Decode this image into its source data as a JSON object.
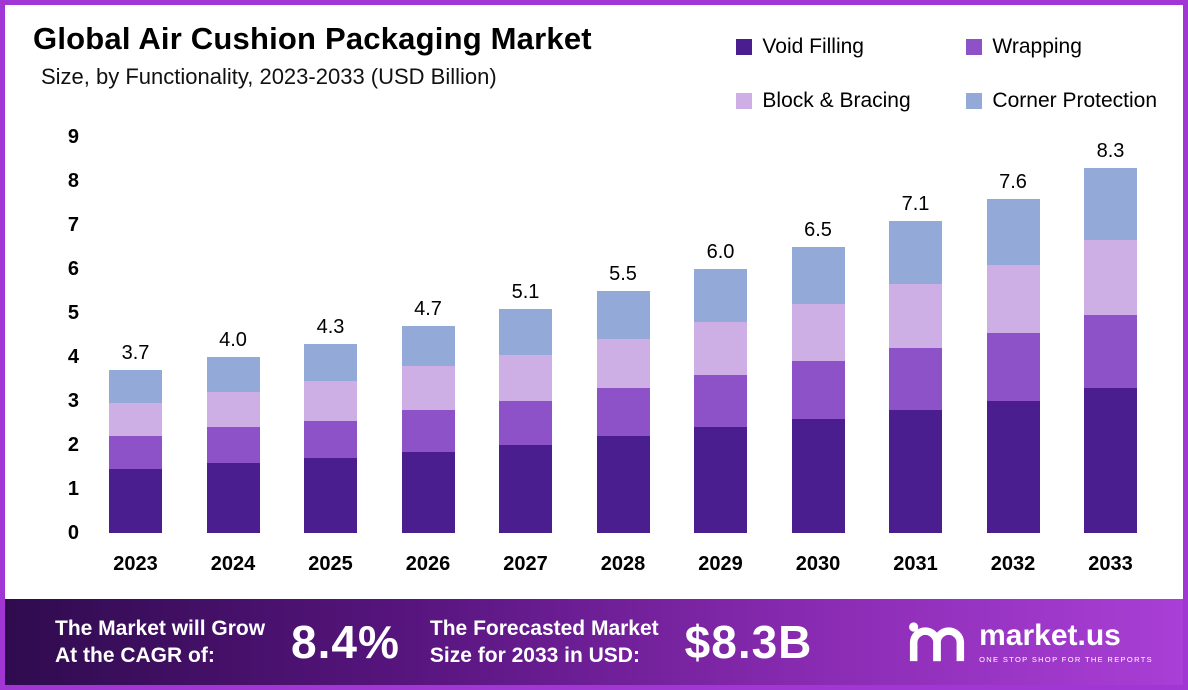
{
  "chart_data": {
    "type": "bar",
    "stacked": true,
    "title": "Global Air Cushion Packaging Market",
    "subtitle": "Size, by Functionality, 2023-2033 (USD Billion)",
    "categories": [
      "2023",
      "2024",
      "2025",
      "2026",
      "2027",
      "2028",
      "2029",
      "2030",
      "2031",
      "2032",
      "2033"
    ],
    "total_labels": [
      "3.7",
      "4.0",
      "4.3",
      "4.7",
      "5.1",
      "5.5",
      "6.0",
      "6.5",
      "7.1",
      "7.6",
      "8.3"
    ],
    "totals": [
      3.7,
      4.0,
      4.3,
      4.7,
      5.1,
      5.5,
      6.0,
      6.5,
      7.1,
      7.6,
      8.3
    ],
    "series": [
      {
        "name": "Void Filling",
        "color": "#4a1e8f",
        "values": [
          1.45,
          1.6,
          1.7,
          1.85,
          2.0,
          2.2,
          2.4,
          2.6,
          2.8,
          3.0,
          3.3
        ]
      },
      {
        "name": "Wrapping",
        "color": "#8e52c8",
        "values": [
          0.75,
          0.8,
          0.85,
          0.95,
          1.0,
          1.1,
          1.2,
          1.3,
          1.4,
          1.55,
          1.65
        ]
      },
      {
        "name": "Block & Bracing",
        "color": "#cdafe6",
        "values": [
          0.75,
          0.8,
          0.9,
          1.0,
          1.05,
          1.1,
          1.2,
          1.3,
          1.45,
          1.55,
          1.7
        ]
      },
      {
        "name": "Corner Protection",
        "color": "#93aad9",
        "values": [
          0.75,
          0.8,
          0.85,
          0.9,
          1.05,
          1.1,
          1.2,
          1.3,
          1.45,
          1.5,
          1.65
        ]
      }
    ],
    "y_ticks": [
      0,
      1,
      2,
      3,
      4,
      5,
      6,
      7,
      8,
      9
    ],
    "ylim": [
      0,
      9
    ],
    "xlabel": "",
    "ylabel": "",
    "grid": false,
    "legend_position": "top-right"
  },
  "banner": {
    "cagr_label_line1": "The Market will Grow",
    "cagr_label_line2": "At the CAGR of:",
    "cagr_value": "8.4%",
    "forecast_label_line1": "The Forecasted Market",
    "forecast_label_line2": "Size for 2033 in USD:",
    "forecast_value": "$8.3B",
    "brand_name": "market.us",
    "brand_tagline": "ONE STOP SHOP FOR THE REPORTS"
  },
  "theme": {
    "border_color": "#a136d4",
    "banner_gradient": [
      "#2f0b4e",
      "#58157f",
      "#8b2cb4",
      "#a93fd6"
    ],
    "banner_text_color": "#ffffff"
  }
}
